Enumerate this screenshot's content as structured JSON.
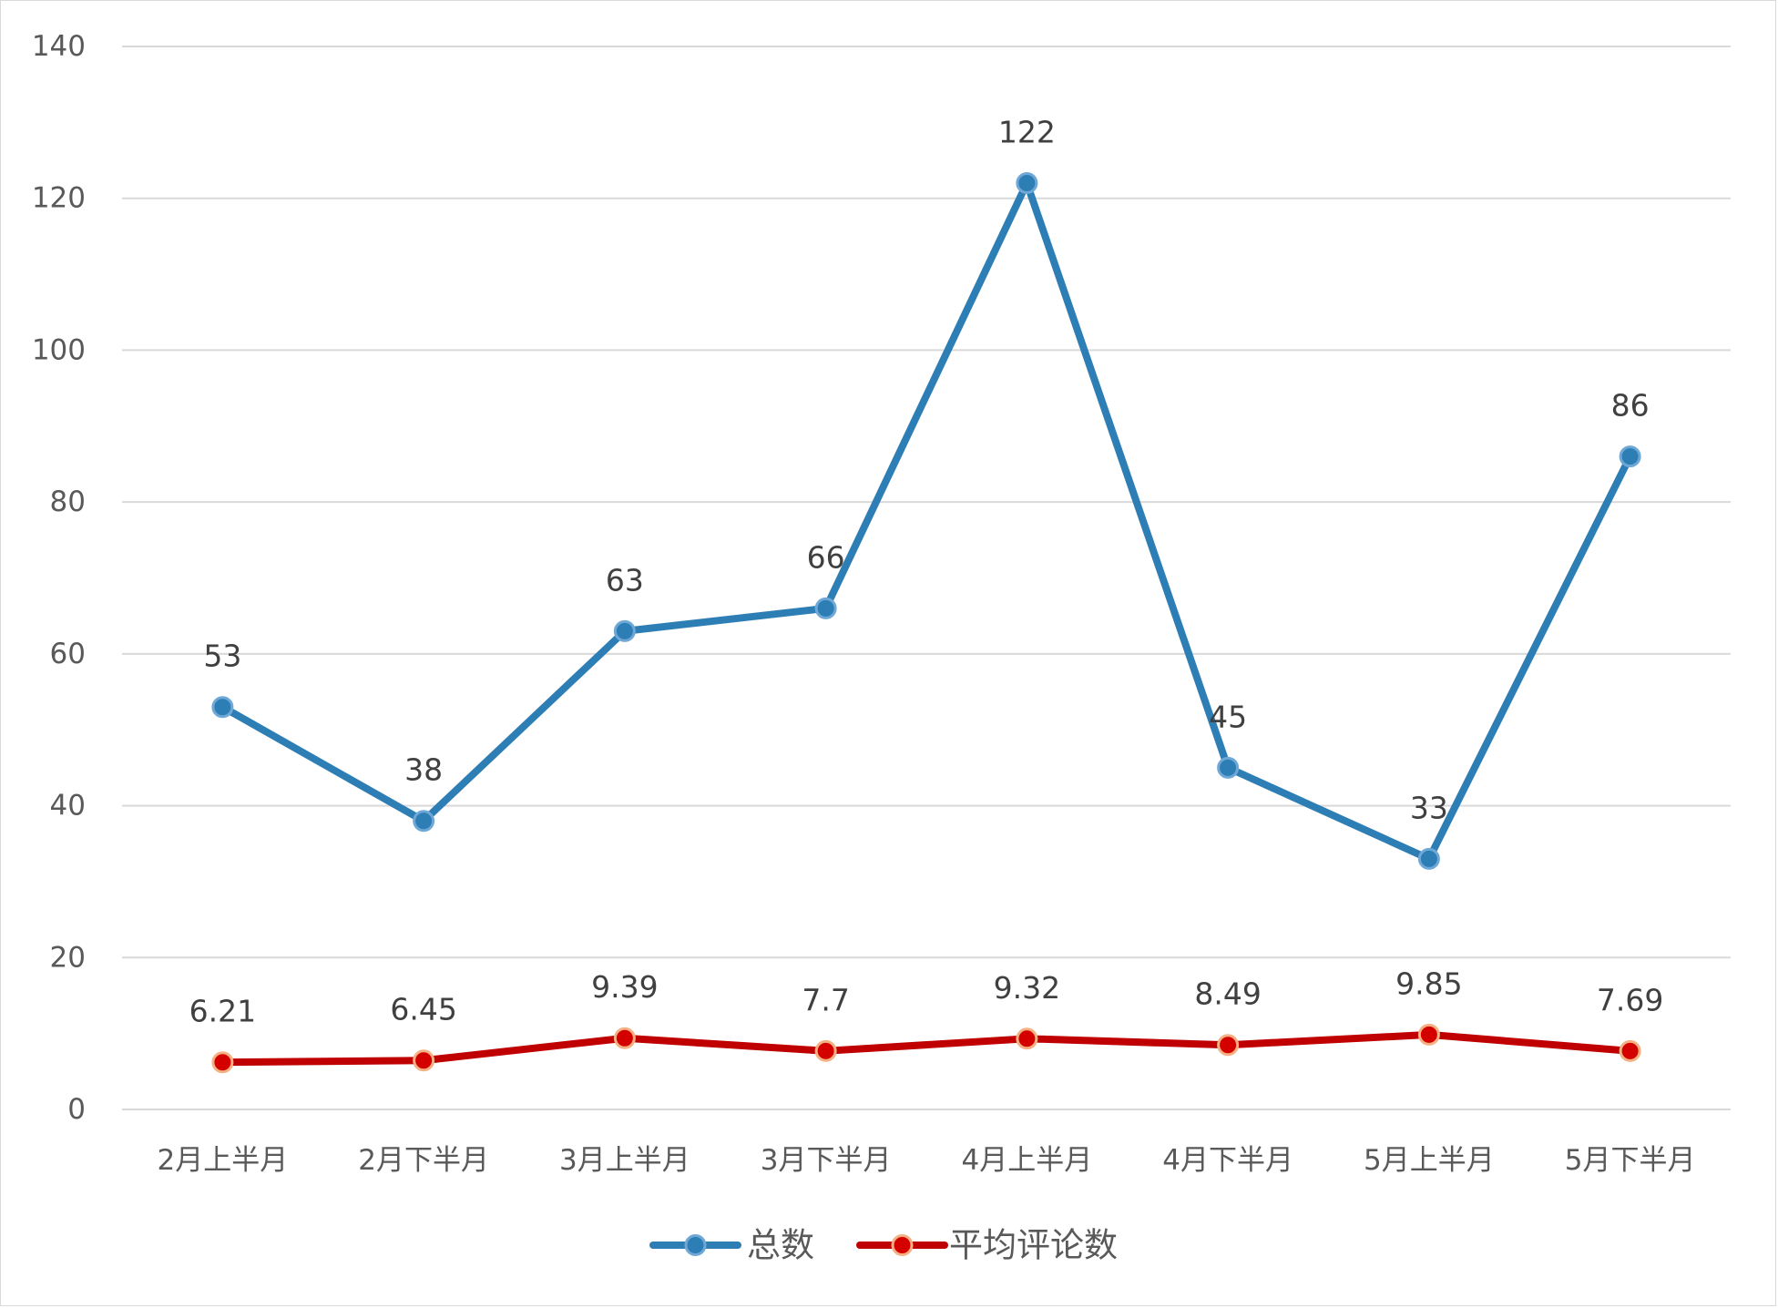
{
  "chart_data": {
    "type": "line",
    "title": "",
    "xlabel": "",
    "ylabel": "",
    "ylim": [
      0,
      140
    ],
    "yticks": [
      0,
      20,
      40,
      60,
      80,
      100,
      120,
      140
    ],
    "grid": true,
    "legend_position": "bottom",
    "categories": [
      "2月上半月",
      "2月下半月",
      "3月上半月",
      "3月下半月",
      "4月上半月",
      "4月下半月",
      "5月上半月",
      "5月下半月"
    ],
    "series": [
      {
        "name": "总数",
        "color": "#2E7EB6",
        "values": [
          53,
          38,
          63,
          66,
          122,
          45,
          33,
          86
        ],
        "labels": [
          "53",
          "38",
          "63",
          "66",
          "122",
          "45",
          "33",
          "86"
        ]
      },
      {
        "name": "平均评论数",
        "color": "#C00000",
        "marker_color": "#D40000",
        "marker_edge": "#F4B183",
        "values": [
          6.21,
          6.45,
          9.39,
          7.7,
          9.32,
          8.49,
          9.85,
          7.69
        ],
        "labels": [
          "6.21",
          "6.45",
          "9.39",
          "7.7",
          "9.32",
          "8.49",
          "9.85",
          "7.69"
        ]
      }
    ]
  }
}
